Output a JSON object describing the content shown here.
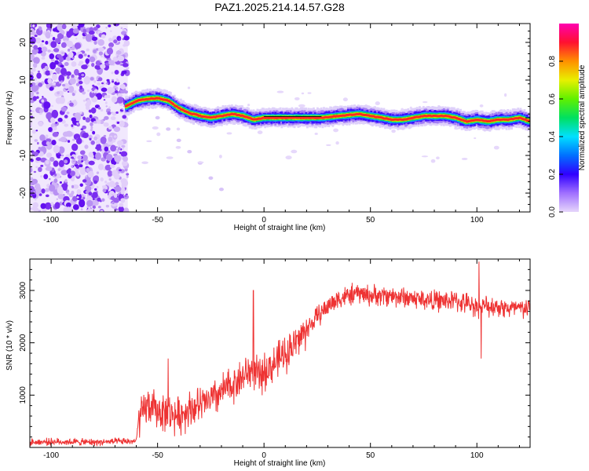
{
  "title": "PAZ1.2025.214.14.57.G28",
  "chart_data": [
    {
      "type": "heatmap",
      "xlabel": "Height of straight line (km)",
      "ylabel": "Frequency (Hz)",
      "xlim": [
        -110,
        125
      ],
      "ylim": [
        -25,
        25
      ],
      "xticks": [
        -100,
        -50,
        0,
        50,
        100
      ],
      "yticks": [
        -20,
        -10,
        0,
        10,
        20
      ],
      "grid": false,
      "colorbar": {
        "label": "Normalized spectral amplitude",
        "range": [
          0,
          1
        ],
        "ticks": [
          0.0,
          0.2,
          0.4,
          0.6,
          0.8
        ],
        "colors": [
          "#d8b8f8",
          "#6a00ff",
          "#0040ff",
          "#00d8ff",
          "#00e040",
          "#b0f000",
          "#ffd000",
          "#ff5000",
          "#ff0040",
          "#ff00c0"
        ]
      },
      "ridge": {
        "x": [
          -65,
          -60,
          -55,
          -50,
          -45,
          -40,
          -35,
          -30,
          -25,
          -20,
          -15,
          -10,
          -5,
          0,
          10,
          20,
          27,
          35,
          45,
          50,
          55,
          60,
          65,
          70,
          75,
          80,
          85,
          90,
          95,
          100,
          105,
          110,
          115,
          120,
          125
        ],
        "y": [
          3,
          4.5,
          5,
          5.2,
          4.5,
          2.5,
          1.2,
          0.5,
          0,
          0.5,
          1,
          0.5,
          -0.5,
          0,
          0,
          0,
          0,
          0.5,
          1,
          0.5,
          0,
          -0.5,
          -0.5,
          0,
          0.5,
          0.5,
          0.5,
          0,
          -1,
          -0.5,
          -1,
          -0.5,
          -0.5,
          0,
          -1
        ]
      },
      "noise_region_x": [
        -110,
        -64
      ],
      "faint_branch": {
        "x": [
          -50,
          -45,
          -40,
          -35,
          -30,
          -25,
          -20
        ],
        "y": [
          0,
          -3,
          -6,
          -9,
          -12,
          -16,
          -19
        ]
      }
    },
    {
      "type": "line",
      "xlabel": "Height of straight line (km)",
      "ylabel": "SNR (10 * v/v)",
      "xlim": [
        -110,
        125
      ],
      "ylim": [
        0,
        3600
      ],
      "xticks": [
        -100,
        -50,
        0,
        50,
        100
      ],
      "yticks": [
        1000,
        2000,
        3000
      ],
      "grid": false,
      "color": "#ee3333",
      "series": [
        {
          "x": [
            -110,
            -100,
            -90,
            -80,
            -70,
            -60,
            -59,
            -55,
            -50,
            -45,
            -40,
            -35,
            -30,
            -25,
            -20,
            -15,
            -10,
            -5,
            -2,
            0,
            5,
            10,
            15,
            20,
            25,
            30,
            35,
            40,
            45,
            50,
            60,
            70,
            80,
            90,
            95,
            100,
            105,
            110,
            115,
            120,
            125
          ],
          "y": [
            100,
            110,
            105,
            100,
            110,
            120,
            500,
            800,
            700,
            650,
            600,
            750,
            800,
            900,
            1050,
            1200,
            1350,
            1500,
            1300,
            1450,
            1600,
            1800,
            2000,
            2250,
            2500,
            2700,
            2850,
            2900,
            2950,
            2900,
            2900,
            2850,
            2800,
            2800,
            2750,
            2700,
            2700,
            2700,
            2650,
            2650,
            2650
          ]
        }
      ],
      "spikes": [
        {
          "x": -45,
          "y": 1700
        },
        {
          "x": -5,
          "y": 3000
        },
        {
          "x": 101,
          "y": 3550
        },
        {
          "x": 102,
          "y": 1700
        }
      ]
    }
  ]
}
